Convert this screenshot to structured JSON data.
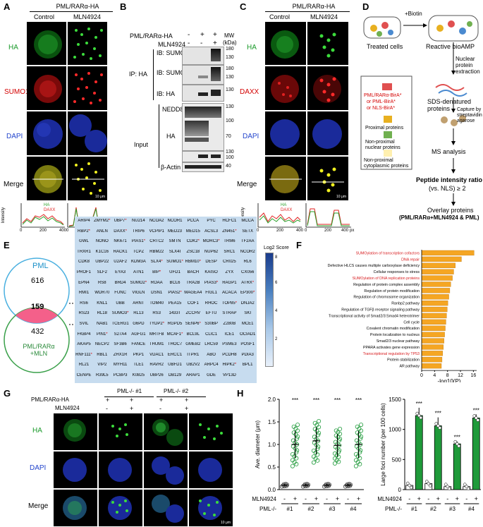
{
  "panelA": {
    "label": "A",
    "header": "PML/RARα-HA",
    "columns": [
      "Control",
      "MLN4924"
    ],
    "rows": [
      "HA",
      "SUMO1",
      "DAPI",
      "Merge"
    ],
    "scale_bar": "10 μm",
    "profile": {
      "legend": [
        "HA",
        "DAXX"
      ],
      "xlabel": "px",
      "ylabel": "Intensity",
      "ticks_x": [
        "0",
        "200",
        "400"
      ],
      "ticks_y": [
        "0",
        "50",
        "100",
        "150",
        "200",
        "250"
      ]
    }
  },
  "panelB": {
    "label": "B",
    "treatments": [
      "PML/RARα-HA",
      "MLN4924"
    ],
    "signs": [
      [
        "-",
        "+",
        "+"
      ],
      [
        "-",
        "-",
        "+"
      ]
    ],
    "mw_label": "MW",
    "mw_unit": "(kDa)",
    "ip_label": "IP: HA",
    "input_label": "Input",
    "blots": [
      "IB: SUMO1",
      "IB: SUMO2/3",
      "IB: HA",
      "NEDD8",
      "HA",
      "β-Actin"
    ],
    "mw_marks": [
      "180",
      "130",
      "180",
      "130",
      "130",
      "130",
      "100",
      "70",
      "130",
      "100",
      "40"
    ]
  },
  "panelC": {
    "label": "C",
    "header": "PML/RARα-HA",
    "columns": [
      "Control",
      "MLN4924"
    ],
    "rows": [
      "HA",
      "DAXX",
      "DAPI",
      "Merge"
    ],
    "scale_bar": "10 μm",
    "profile": {
      "legend": [
        "HA",
        "DAXX"
      ],
      "xlabel": "px",
      "ylabel": "Intensity",
      "ticks_x": [
        "0",
        "200",
        "400"
      ]
    }
  },
  "panelD": {
    "label": "D",
    "biotin": "+Biotin",
    "steps": [
      "Treated cells",
      "Reactive bioAMP",
      "Nuclear protein extraction",
      "SDS-denatured proteins",
      "Capture by streptavidin agarose",
      "MS analysis",
      "Peptide intensity ratio",
      "(vs. NLS) ≥ 2",
      "Overlay proteins",
      "(PML/RARα+MLN4924 & PML)"
    ],
    "legend": [
      "PML/RARα-BirA*",
      "or PML-BirA*",
      "or NLS-BirA*",
      "Proximal proteins",
      "Non-proximal nuclear proteins",
      "Non-proximal cytoplasmic proteins"
    ]
  },
  "panelE": {
    "label": "E",
    "venn": {
      "set_a": "PML",
      "set_b": "PML/RARα +MLN",
      "only_a": "616",
      "overlap": "159",
      "only_b": "432"
    },
    "colorbar_title": "Log2 Score",
    "colorbar_ticks": [
      "2",
      "4",
      "6",
      "8"
    ],
    "genes": [
      [
        "ARIP4",
        "ZMYM2*",
        "UBP7*",
        "NU214",
        "NCOA2",
        "NCOR1",
        "PCCA",
        "PYC",
        "HCFC1",
        "MCCA"
      ],
      [
        "RBP2*",
        "ANLN",
        "DAXX*",
        "TRIP6",
        "VCPIP1",
        "MED23",
        "MED15",
        "ACSL3",
        "ZN451*",
        "SETX"
      ],
      [
        "GWL",
        "NONO",
        "NK671",
        "PIAS1*",
        "CRTC2",
        "SMTN",
        "CDK2*",
        "MORC3*",
        "TRM6",
        "TF2AA"
      ],
      [
        "TRXR1",
        "K1C16",
        "RACK1",
        "TCPZ",
        "RBM22",
        "SLX4I",
        "ZSC18",
        "NUP62",
        "SRC1",
        "NCOR2"
      ],
      [
        "CDK8",
        "UBP22",
        "U2AF2",
        "KDM3A",
        "SLX4*",
        "SUMO1*",
        "RBM10*",
        "DESP",
        "CR025",
        "RL6"
      ],
      [
        "PROF1",
        "SLF2",
        "EYA3",
        "ATN1",
        "BIP*",
        "UFD1",
        "BACH",
        "KAISO",
        "ZYX",
        "CX056"
      ],
      [
        "EPN4",
        "RS8",
        "BRD4",
        "SUMO2*",
        "ROAA",
        "BCL6",
        "TRA2B",
        "PIAS3*",
        "RAGP1",
        "ATRX*"
      ],
      [
        "RMI1",
        "WDR70",
        "FUNC",
        "VIGLN",
        "DSN1",
        "PIAS2*",
        "MAGEA4",
        "FIGL1",
        "ACACA",
        "EP300*"
      ],
      [
        "RS6",
        "KNL1",
        "UBB",
        "ARNT",
        "TOM40",
        "PEA15",
        "COF1",
        "RHOC",
        "TOP85*",
        "DNJA2"
      ],
      [
        "RS23",
        "RL18",
        "SUMO3*",
        "RL13",
        "RS3",
        "1433T",
        "ZCCHV",
        "EFTU",
        "STRAP",
        "SKI"
      ],
      [
        "SVIL",
        "NAB1",
        "TCERG1",
        "G6PD",
        "TYDP2*",
        "RGPD5",
        "SENP6*",
        "S30BP",
        "Z280B",
        "MCE1"
      ],
      [
        "FKBP4",
        "PIN1*",
        "S27A4",
        "AGFG1",
        "MRTFB",
        "MCAF1*",
        "BCL9L",
        "CLIC1",
        "ICE1",
        "OCIAD1"
      ],
      [
        "AKAP5",
        "NECP2",
        "SF3B6",
        "FANCE",
        "THUM1",
        "THOC7",
        "GMEB2",
        "LRC59",
        "PSME3",
        "POSF1"
      ],
      [
        "RNF111*",
        "RBL1",
        "ZHX1R",
        "PKP1",
        "VDAC1",
        "ERCC1",
        "ITPR1",
        "ABO",
        "PCDH8",
        "PDIA3"
      ],
      [
        "RL21",
        "VIP2",
        "MYH11",
        "TLE1",
        "RAVR2",
        "UBFD1",
        "UB2V2",
        "ARPC4",
        "HIPK2*",
        "BPL1"
      ],
      [
        "CENPE",
        "R39L5",
        "PCBP3",
        "K0825",
        "UBP26",
        "DB129",
        "ARAP1",
        "GDE",
        "VP13D",
        ""
      ]
    ]
  },
  "panelF": {
    "label": "F",
    "xlabel": "-log10(P)",
    "xticks": [
      "0",
      "4",
      "8",
      "12",
      "16"
    ],
    "highlight_color": "#d7191c",
    "bar_color": "#f5a623",
    "terms": [
      {
        "name": "SUMOylation of transcription cofactors",
        "value": 16.2,
        "highlight": true
      },
      {
        "name": "DNA repair",
        "value": 12.3,
        "highlight": true
      },
      {
        "name": "Defective HLCS causes multiple carboxylase deficiency",
        "value": 10.4,
        "highlight": false
      },
      {
        "name": "Cellular responses to stress",
        "value": 9.9,
        "highlight": false
      },
      {
        "name": "SUMOylation of DNA replication proteins",
        "value": 9.5,
        "highlight": true
      },
      {
        "name": "Regulation of protein complex assembly",
        "value": 9.0,
        "highlight": false
      },
      {
        "name": "Regulation of protein modification",
        "value": 8.7,
        "highlight": false
      },
      {
        "name": "Regulation of chromosome organization",
        "value": 8.4,
        "highlight": false
      },
      {
        "name": "Ranbp2 pathway",
        "value": 8.1,
        "highlight": false
      },
      {
        "name": "Regulation of TGFβ receptor signaling pathway",
        "value": 7.9,
        "highlight": false
      },
      {
        "name": "Transcriptional activity of Smad2/3:Smad4 heterotrimer",
        "value": 7.7,
        "highlight": false
      },
      {
        "name": "Cell cycle",
        "value": 7.5,
        "highlight": false
      },
      {
        "name": "Covalent chromatin modification",
        "value": 7.3,
        "highlight": false
      },
      {
        "name": "Protein localization to nucleus",
        "value": 7.1,
        "highlight": false
      },
      {
        "name": "Smad2/3 nuclear pathway",
        "value": 6.9,
        "highlight": false
      },
      {
        "name": "PPARA activates gene expression",
        "value": 6.7,
        "highlight": false
      },
      {
        "name": "Transcriptional regulation by TP53",
        "value": 6.5,
        "highlight": true
      },
      {
        "name": "Protein stabilization",
        "value": 6.3,
        "highlight": false
      },
      {
        "name": "AR pathway",
        "value": 6.1,
        "highlight": false
      }
    ]
  },
  "panelG": {
    "label": "G",
    "groups": [
      "PML-/- #1",
      "PML-/- #2"
    ],
    "treatments": [
      "PML/RARα-HA",
      "MLN4924"
    ],
    "signs": [
      [
        "+",
        "+",
        "+",
        "+"
      ],
      [
        "-",
        "+",
        "-",
        "+"
      ]
    ],
    "rows": [
      "HA",
      "DAPI",
      "Merge"
    ],
    "scale_bar": "10 μm"
  },
  "panelH": {
    "label": "H",
    "sig": "***",
    "row_labels": [
      "MLN4924",
      "PML-/-"
    ],
    "mln_signs": [
      "-",
      "+",
      "-",
      "+",
      "-",
      "+",
      "-",
      "+"
    ],
    "clones": [
      "#1",
      "#2",
      "#3",
      "#4"
    ]
  },
  "chart_data": [
    {
      "type": "bar",
      "title": "",
      "xlabel": "-log10(P)",
      "ylabel": "",
      "xlim": [
        0,
        17
      ],
      "categories": [
        "SUMOylation of transcription cofactors",
        "DNA repair",
        "Defective HLCS causes multiple carboxylase deficiency",
        "Cellular responses to stress",
        "SUMOylation of DNA replication proteins",
        "Regulation of protein complex assembly",
        "Regulation of protein modification",
        "Regulation of chromosome organization",
        "Ranbp2 pathway",
        "Regulation of TGFβ receptor signaling pathway",
        "Transcriptional activity of Smad2/3:Smad4 heterotrimer",
        "Cell cycle",
        "Covalent chromatin modification",
        "Protein localization to nucleus",
        "Smad2/3 nuclear pathway",
        "PPARA activates gene expression",
        "Transcriptional regulation by TP53",
        "Protein stabilization",
        "AR pathway"
      ],
      "values": [
        16.2,
        12.3,
        10.4,
        9.9,
        9.5,
        9.0,
        8.7,
        8.4,
        8.1,
        7.9,
        7.7,
        7.5,
        7.3,
        7.1,
        6.9,
        6.7,
        6.5,
        6.3,
        6.1
      ]
    },
    {
      "type": "scatter",
      "title": "",
      "ylabel": "Ave. diameter (μm)",
      "ylim": [
        0,
        2.0
      ],
      "yticks": [
        "0.0",
        "0.5",
        "1.0",
        "1.5",
        "2.0"
      ],
      "categories": [
        "#1 -",
        "#1 +",
        "#2 -",
        "#2 +",
        "#3 -",
        "#3 +",
        "#4 -",
        "#4 +"
      ],
      "means": [
        0.1,
        1.0,
        0.1,
        1.08,
        0.1,
        0.98,
        0.1,
        1.0
      ],
      "sd": [
        0.02,
        0.3,
        0.02,
        0.3,
        0.02,
        0.25,
        0.02,
        0.3
      ]
    },
    {
      "type": "bar",
      "title": "",
      "ylabel": "Large foci number (per 100 cells)",
      "ylim": [
        0,
        1500
      ],
      "yticks": [
        "0",
        "500",
        "1000",
        "1500"
      ],
      "categories": [
        "#1 -",
        "#1 +",
        "#2 -",
        "#2 +",
        "#3 -",
        "#3 +",
        "#4 -",
        "#4 +"
      ],
      "values": [
        70,
        1230,
        100,
        1060,
        50,
        760,
        50,
        1190
      ],
      "sd": [
        20,
        130,
        20,
        140,
        15,
        40,
        15,
        60
      ]
    }
  ]
}
